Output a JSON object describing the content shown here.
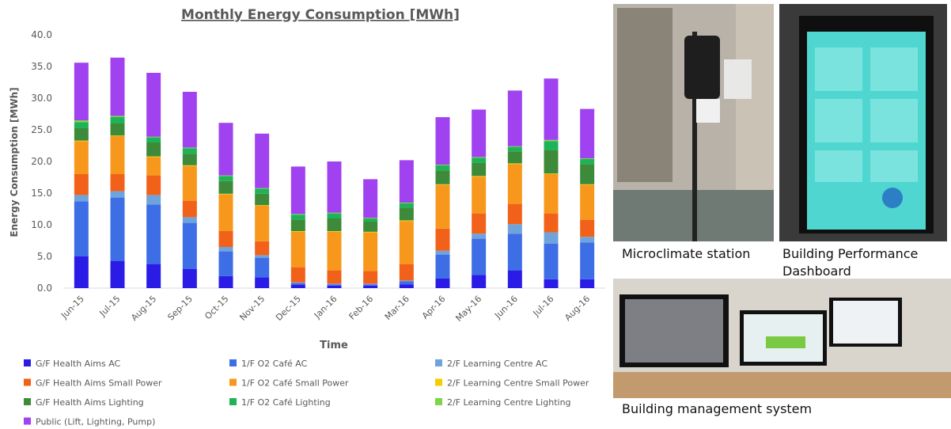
{
  "chart_data": {
    "type": "stacked_bar",
    "title": "Monthly Energy Consumption [MWh]",
    "x_label": "Time",
    "y_label": "Energy Consumption [MWh]",
    "categories": [
      "Jun-15",
      "Jul-15",
      "Aug-15",
      "Sep-15",
      "Oct-15",
      "Nov-15",
      "Dec-15",
      "Jan-16",
      "Feb-16",
      "Mar-16",
      "Apr-16",
      "May-16",
      "Jun-16",
      "Jul-16",
      "Aug-16"
    ],
    "ylim": [
      0,
      40
    ],
    "yticks": [
      {
        "value": 0,
        "label": "0.0"
      },
      {
        "value": 5,
        "label": "5.0"
      },
      {
        "value": 10,
        "label": "10.0"
      },
      {
        "value": 15,
        "label": "15.0"
      },
      {
        "value": 20,
        "label": "20.0"
      },
      {
        "value": 25,
        "label": "25.0"
      },
      {
        "value": 30,
        "label": "30.0"
      },
      {
        "value": 35,
        "label": "35.0"
      },
      {
        "value": 40,
        "label": "40.0"
      }
    ],
    "grid": false,
    "series": [
      {
        "name": "G/F Health Aims AC",
        "color": "#2b1be6",
        "values": [
          5.0,
          4.3,
          3.8,
          3.0,
          1.9,
          1.7,
          0.5,
          0.4,
          0.4,
          0.6,
          1.5,
          2.1,
          2.8,
          1.4,
          1.4
        ]
      },
      {
        "name": "1/F O2 Café AC",
        "color": "#3d6ee6",
        "values": [
          8.7,
          10.0,
          9.4,
          7.3,
          3.9,
          3.1,
          0.3,
          0.2,
          0.2,
          0.5,
          3.8,
          5.7,
          5.8,
          5.6,
          5.8
        ]
      },
      {
        "name": "2/F Learning Centre AC",
        "color": "#6fa3dc",
        "values": [
          1.0,
          1.0,
          1.5,
          0.9,
          0.7,
          0.4,
          0.1,
          0.1,
          0.1,
          0.1,
          0.6,
          0.8,
          1.5,
          1.8,
          0.9
        ]
      },
      {
        "name": "G/F Health Aims Small Power",
        "color": "#f2611a",
        "values": [
          3.3,
          2.7,
          3.1,
          2.6,
          2.5,
          2.2,
          2.4,
          2.1,
          2.0,
          2.6,
          3.5,
          3.2,
          3.2,
          3.0,
          2.7
        ]
      },
      {
        "name": "1/F O2 Café Small Power",
        "color": "#f7981d",
        "values": [
          5.2,
          6.0,
          2.9,
          5.5,
          5.8,
          5.6,
          5.6,
          6.1,
          6.1,
          6.8,
          6.9,
          5.8,
          6.3,
          6.2,
          5.5
        ]
      },
      {
        "name": "2/F Learning Centre Small Power",
        "color": "#f5cc00",
        "values": [
          0.1,
          0.1,
          0.1,
          0.1,
          0.1,
          0.1,
          0.1,
          0.1,
          0.1,
          0.1,
          0.1,
          0.1,
          0.1,
          0.1,
          0.1
        ]
      },
      {
        "name": "G/F Health Aims Lighting",
        "color": "#3d8a3a",
        "values": [
          2.0,
          1.9,
          2.2,
          1.8,
          2.0,
          1.8,
          1.8,
          2.0,
          1.6,
          2.0,
          2.2,
          2.1,
          1.9,
          3.7,
          3.2
        ]
      },
      {
        "name": "1/F O2 Café Lighting",
        "color": "#1db356",
        "values": [
          0.9,
          1.0,
          0.8,
          0.9,
          0.8,
          0.8,
          0.8,
          0.8,
          0.5,
          0.7,
          0.8,
          0.8,
          0.7,
          1.4,
          0.8
        ]
      },
      {
        "name": "2/F Learning Centre Lighting",
        "color": "#7ed44a",
        "values": [
          0.3,
          0.2,
          0.1,
          0.1,
          0.1,
          0.1,
          0.1,
          0.1,
          0.1,
          0.1,
          0.1,
          0.1,
          0.1,
          0.2,
          0.1
        ]
      },
      {
        "name": "Public (Lift, Lighting, Pump)",
        "color": "#a142f0",
        "values": [
          9.1,
          9.2,
          10.1,
          8.8,
          8.3,
          8.6,
          7.5,
          8.1,
          6.1,
          6.7,
          7.5,
          7.5,
          8.8,
          9.7,
          7.8
        ]
      }
    ]
  },
  "captions": [
    "Microclimate station",
    "Building Performance Dashboard",
    "Building management system"
  ]
}
